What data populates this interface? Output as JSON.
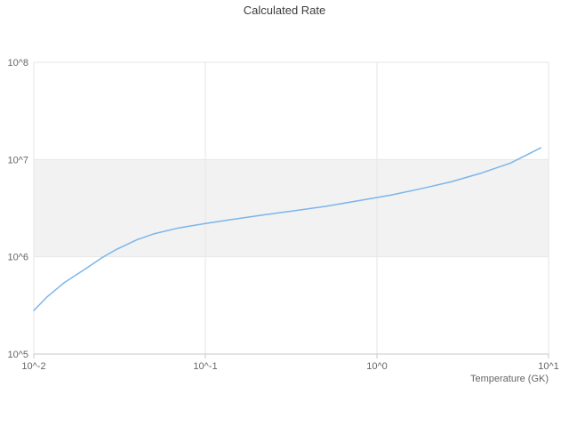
{
  "chart_data": {
    "type": "line",
    "title": "Calculated Rate",
    "xlabel": "Temperature (GK)",
    "ylabel": "",
    "xscale": "log",
    "yscale": "log",
    "xlim": [
      0.01,
      10
    ],
    "ylim": [
      100000,
      100000000
    ],
    "xtick_values": [
      0.01,
      0.1,
      1,
      10
    ],
    "xtick_labels": [
      "10^-2",
      "10^-1",
      "10^0",
      "10^1"
    ],
    "ytick_values": [
      100000,
      1000000,
      10000000,
      100000000
    ],
    "ytick_labels": [
      "10^5",
      "10^6",
      "10^7",
      "10^8"
    ],
    "grid": true,
    "legend": "none",
    "band": {
      "from": 1000000,
      "to": 10000000,
      "color": "#f2f2f2"
    },
    "colors": {
      "line": "#7cb5ec",
      "grid": "#e6e6e6",
      "axis": "#c8c8c8",
      "label": "#666666",
      "title": "#3d3d3d"
    },
    "series": [
      {
        "name": "Calculated Rate",
        "x": [
          0.01,
          0.012,
          0.015,
          0.02,
          0.025,
          0.03,
          0.04,
          0.05,
          0.07,
          0.1,
          0.15,
          0.22,
          0.32,
          0.5,
          0.8,
          1.2,
          1.8,
          2.7,
          4.0,
          6.0,
          9.0
        ],
        "y": [
          280000,
          390000,
          540000,
          750000,
          980000,
          1180000,
          1500000,
          1720000,
          1980000,
          2200000,
          2450000,
          2700000,
          2950000,
          3300000,
          3800000,
          4300000,
          5000000,
          5900000,
          7200000,
          9200000,
          13200000
        ]
      }
    ]
  }
}
